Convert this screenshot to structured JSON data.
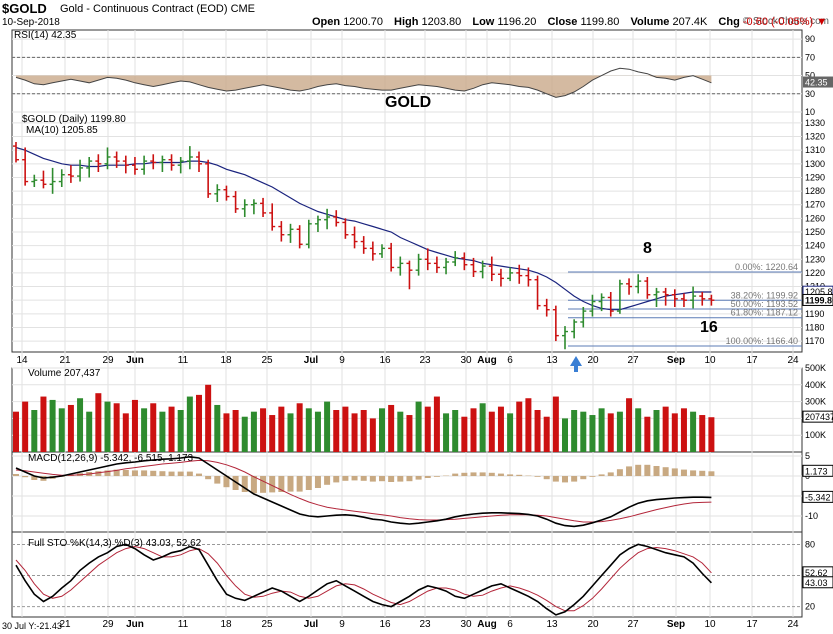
{
  "header": {
    "symbol": "$GOLD",
    "description": "Gold - Continuous Contract (EOD)",
    "exchange": "CME",
    "date": "10-Sep-2018",
    "watermark": "© StockCharts.com",
    "open_label": "Open",
    "open": "1200.70",
    "high_label": "High",
    "high": "1203.80",
    "low_label": "Low",
    "low": "1196.20",
    "close_label": "Close",
    "close": "1199.80",
    "volume_label": "Volume",
    "volume": "207.4K",
    "chg_label": "Chg",
    "chg": "-0.60 (-0.05%)"
  },
  "colors": {
    "up": "#2e8b2e",
    "down": "#cc1111",
    "ma": "#1a237e",
    "macd_hist": "#c8a982",
    "fib": "#5b7bb5",
    "annot": "#4a7bbf",
    "title": "#9b1fd1",
    "arrow": "#3a7fd4"
  },
  "chart_data": [
    {
      "type": "line",
      "title": "RSI(14) 42.35",
      "ylim": [
        10,
        100
      ],
      "yticks": [
        "90",
        "70",
        "50",
        "30",
        "10"
      ],
      "last_label": "42.35",
      "overlay_text": "GOLD",
      "values": [
        48,
        45,
        41,
        40,
        42,
        44,
        46,
        44,
        42,
        45,
        48,
        47,
        45,
        42,
        40,
        38,
        40,
        42,
        44,
        43,
        40,
        37,
        35,
        33,
        34,
        36,
        38,
        40,
        38,
        36,
        34,
        33,
        35,
        38,
        40,
        41,
        39,
        38,
        36,
        35,
        34,
        34,
        36,
        38,
        40,
        39,
        38,
        36,
        34,
        33,
        36,
        40,
        42,
        41,
        40,
        38,
        37,
        34,
        30,
        26,
        28,
        32,
        38,
        45,
        50,
        55,
        58,
        57,
        54,
        52,
        48,
        47,
        45,
        48,
        50,
        46,
        42
      ]
    },
    {
      "type": "bar",
      "title": "$GOLD (Daily) 1199.80",
      "ma_label": "MA(10) 1205.85",
      "ylim": [
        1162,
        1338
      ],
      "yticks": [
        "1330",
        "1320",
        "1310",
        "1300",
        "1290",
        "1280",
        "1270",
        "1260",
        "1250",
        "1240",
        "1230",
        "1220",
        "1210",
        "1200",
        "1190",
        "1180",
        "1170"
      ],
      "price_flags": [
        "1205.85",
        "1199.80"
      ],
      "x_labels": [
        "14",
        "21",
        "29",
        "Jun",
        "11",
        "18",
        "25",
        "Jul",
        "9",
        "16",
        "23",
        "30",
        "Aug",
        "6",
        "13",
        "20",
        "27",
        "Sep",
        "10",
        "17",
        "24"
      ],
      "ohlc": [
        [
          1313,
          1316,
          1301,
          1303
        ],
        [
          1303,
          1312,
          1284,
          1287
        ],
        [
          1287,
          1292,
          1283,
          1288
        ],
        [
          1288,
          1295,
          1282,
          1285
        ],
        [
          1285,
          1297,
          1278,
          1287
        ],
        [
          1287,
          1296,
          1283,
          1292
        ],
        [
          1292,
          1299,
          1286,
          1291
        ],
        [
          1291,
          1303,
          1287,
          1297
        ],
        [
          1297,
          1305,
          1290,
          1302
        ],
        [
          1302,
          1307,
          1294,
          1300
        ],
        [
          1300,
          1312,
          1296,
          1305
        ],
        [
          1305,
          1309,
          1297,
          1302
        ],
        [
          1302,
          1306,
          1293,
          1299
        ],
        [
          1299,
          1305,
          1292,
          1296
        ],
        [
          1296,
          1306,
          1292,
          1302
        ],
        [
          1302,
          1307,
          1296,
          1301
        ],
        [
          1301,
          1306,
          1294,
          1303
        ],
        [
          1303,
          1307,
          1295,
          1299
        ],
        [
          1299,
          1305,
          1293,
          1302
        ],
        [
          1302,
          1313,
          1296,
          1305
        ],
        [
          1305,
          1309,
          1294,
          1300
        ],
        [
          1300,
          1303,
          1275,
          1278
        ],
        [
          1278,
          1285,
          1272,
          1281
        ],
        [
          1281,
          1284,
          1273,
          1276
        ],
        [
          1276,
          1280,
          1264,
          1267
        ],
        [
          1267,
          1274,
          1261,
          1270
        ],
        [
          1270,
          1274,
          1263,
          1271
        ],
        [
          1271,
          1275,
          1261,
          1264
        ],
        [
          1264,
          1271,
          1251,
          1254
        ],
        [
          1254,
          1258,
          1243,
          1248
        ],
        [
          1248,
          1256,
          1242,
          1252
        ],
        [
          1252,
          1255,
          1238,
          1241
        ],
        [
          1241,
          1259,
          1238,
          1256
        ],
        [
          1256,
          1262,
          1250,
          1259
        ],
        [
          1259,
          1267,
          1252,
          1261
        ],
        [
          1261,
          1266,
          1254,
          1257
        ],
        [
          1257,
          1260,
          1245,
          1248
        ],
        [
          1248,
          1254,
          1238,
          1243
        ],
        [
          1243,
          1247,
          1234,
          1238
        ],
        [
          1238,
          1243,
          1229,
          1234
        ],
        [
          1234,
          1241,
          1231,
          1238
        ],
        [
          1238,
          1242,
          1221,
          1224
        ],
        [
          1224,
          1232,
          1218,
          1227
        ],
        [
          1227,
          1229,
          1208,
          1222
        ],
        [
          1222,
          1234,
          1218,
          1230
        ],
        [
          1230,
          1238,
          1222,
          1227
        ],
        [
          1227,
          1232,
          1220,
          1224
        ],
        [
          1224,
          1231,
          1219,
          1228
        ],
        [
          1228,
          1236,
          1225,
          1231
        ],
        [
          1231,
          1235,
          1222,
          1226
        ],
        [
          1226,
          1231,
          1217,
          1221
        ],
        [
          1221,
          1229,
          1216,
          1225
        ],
        [
          1225,
          1232,
          1214,
          1219
        ],
        [
          1219,
          1223,
          1210,
          1216
        ],
        [
          1216,
          1224,
          1214,
          1220
        ],
        [
          1220,
          1226,
          1212,
          1218
        ],
        [
          1218,
          1224,
          1210,
          1215
        ],
        [
          1215,
          1218,
          1193,
          1196
        ],
        [
          1196,
          1201,
          1188,
          1193
        ],
        [
          1193,
          1196,
          1170,
          1174
        ],
        [
          1174,
          1181,
          1164,
          1177
        ],
        [
          1177,
          1186,
          1172,
          1184
        ],
        [
          1184,
          1195,
          1180,
          1192
        ],
        [
          1192,
          1204,
          1188,
          1199
        ],
        [
          1199,
          1205,
          1192,
          1202
        ],
        [
          1202,
          1206,
          1188,
          1192
        ],
        [
          1192,
          1215,
          1190,
          1212
        ],
        [
          1212,
          1216,
          1204,
          1210
        ],
        [
          1210,
          1219,
          1205,
          1214
        ],
        [
          1214,
          1217,
          1201,
          1204
        ],
        [
          1204,
          1209,
          1195,
          1206
        ],
        [
          1206,
          1209,
          1196,
          1204
        ],
        [
          1204,
          1208,
          1195,
          1201
        ],
        [
          1201,
          1205,
          1195,
          1200
        ],
        [
          1200,
          1210,
          1194,
          1203
        ],
        [
          1203,
          1206,
          1196,
          1201
        ],
        [
          1201,
          1204,
          1196,
          1200
        ]
      ],
      "ma10": [
        1312,
        1310,
        1307,
        1304,
        1302,
        1300,
        1299,
        1299,
        1298,
        1298,
        1299,
        1299,
        1299,
        1300,
        1300,
        1301,
        1301,
        1301,
        1301,
        1302,
        1302,
        1301,
        1299,
        1296,
        1294,
        1292,
        1289,
        1286,
        1283,
        1279,
        1275,
        1271,
        1268,
        1265,
        1263,
        1261,
        1259,
        1258,
        1256,
        1254,
        1252,
        1250,
        1246,
        1243,
        1240,
        1237,
        1235,
        1233,
        1231,
        1230,
        1229,
        1227,
        1226,
        1225,
        1224,
        1223,
        1222,
        1220,
        1217,
        1213,
        1208,
        1203,
        1199,
        1196,
        1194,
        1193,
        1193,
        1195,
        1197,
        1199,
        1201,
        1203,
        1204,
        1205,
        1206,
        1206,
        1206
      ],
      "fib_levels": [
        {
          "label": "0.00%: 1220.64",
          "value": 1220.64
        },
        {
          "label": "38.20%: 1199.92",
          "value": 1199.92
        },
        {
          "label": "50.00%: 1193.52",
          "value": 1193.52
        },
        {
          "label": "61.80%: 1187.12",
          "value": 1187.12
        },
        {
          "label": "100.00%: 1166.40",
          "value": 1166.4
        }
      ],
      "annotations": [
        "8",
        "16"
      ]
    },
    {
      "type": "bar",
      "title": "Volume 207,437",
      "ylim": [
        0,
        500
      ],
      "yticks": [
        "500K",
        "400K",
        "300K",
        "200K",
        "100K"
      ],
      "last_label": "207437",
      "values_k": [
        240,
        300,
        250,
        330,
        310,
        260,
        280,
        320,
        240,
        350,
        300,
        290,
        230,
        310,
        260,
        290,
        240,
        270,
        250,
        330,
        340,
        400,
        280,
        230,
        250,
        210,
        240,
        260,
        220,
        270,
        230,
        290,
        260,
        240,
        300,
        250,
        270,
        230,
        250,
        200,
        260,
        280,
        240,
        220,
        300,
        270,
        330,
        230,
        250,
        210,
        260,
        290,
        240,
        270,
        230,
        300,
        320,
        250,
        210,
        330,
        200,
        250,
        240,
        220,
        260,
        230,
        240,
        320,
        260,
        210,
        250,
        270,
        230,
        260,
        240,
        220,
        207
      ]
    },
    {
      "type": "line",
      "title": "MACD(12,26,9) -5.342, -6.515, 1.173",
      "ylim": [
        -14,
        6
      ],
      "yticks": [
        "5",
        "0",
        "-5",
        "-10"
      ],
      "last_labels": [
        "1.173",
        "-5.342"
      ],
      "macd": [
        2,
        1,
        0,
        -0.5,
        -0.3,
        0,
        0.5,
        1,
        1.5,
        2,
        2.5,
        3,
        3.3,
        3.5,
        3.8,
        4,
        4.2,
        4.3,
        4.5,
        4.8,
        4.5,
        3,
        1.5,
        0,
        -1.5,
        -3,
        -4.5,
        -5.5,
        -6.5,
        -7.5,
        -8.5,
        -9.5,
        -10,
        -10.2,
        -10,
        -9.8,
        -9.7,
        -9.9,
        -10.3,
        -10.8,
        -11,
        -11.5,
        -11.8,
        -12,
        -11.8,
        -11.5,
        -11.2,
        -10.8,
        -10.2,
        -9.8,
        -9.5,
        -9.3,
        -9.2,
        -9.2,
        -9.3,
        -9.4,
        -9.6,
        -10,
        -10.8,
        -11.8,
        -12.4,
        -12.6,
        -12.3,
        -11.7,
        -11,
        -10.2,
        -9,
        -7.8,
        -6.8,
        -6.2,
        -5.9,
        -5.7,
        -5.5,
        -5.4,
        -5.3,
        -5.3,
        -5.342
      ],
      "signal": [
        1.5,
        1.3,
        1,
        0.7,
        0.4,
        0.2,
        0.2,
        0.3,
        0.5,
        0.8,
        1.1,
        1.4,
        1.8,
        2.1,
        2.4,
        2.7,
        3,
        3.2,
        3.4,
        3.7,
        3.9,
        3.8,
        3.4,
        2.8,
        2,
        1,
        -0.2,
        -1.3,
        -2.4,
        -3.5,
        -4.6,
        -5.6,
        -6.5,
        -7.2,
        -7.8,
        -8.2,
        -8.5,
        -8.8,
        -9.1,
        -9.4,
        -9.7,
        -10,
        -10.4,
        -10.7,
        -10.9,
        -11,
        -11,
        -10.9,
        -10.8,
        -10.6,
        -10.4,
        -10.2,
        -10,
        -9.8,
        -9.7,
        -9.7,
        -9.7,
        -9.8,
        -10,
        -10.4,
        -10.8,
        -11.2,
        -11.5,
        -11.5,
        -11.4,
        -11.1,
        -10.7,
        -10.2,
        -9.6,
        -9,
        -8.4,
        -7.9,
        -7.4,
        -7,
        -6.7,
        -6.6,
        -6.515
      ]
    },
    {
      "type": "line",
      "title": "Full STO %K(14,3) %D(3) 43.03, 52.62",
      "ylim": [
        10,
        92
      ],
      "yticks": [
        "80",
        "50",
        "20"
      ],
      "last_labels": [
        "52.62",
        "43.03"
      ],
      "k": [
        60,
        45,
        32,
        25,
        30,
        38,
        45,
        55,
        62,
        68,
        72,
        78,
        80,
        76,
        70,
        65,
        68,
        72,
        74,
        78,
        75,
        60,
        45,
        32,
        28,
        26,
        30,
        34,
        38,
        35,
        30,
        25,
        30,
        36,
        42,
        45,
        40,
        35,
        30,
        25,
        22,
        20,
        25,
        30,
        36,
        40,
        38,
        35,
        30,
        28,
        32,
        36,
        40,
        42,
        38,
        34,
        30,
        25,
        18,
        12,
        15,
        22,
        30,
        40,
        50,
        60,
        70,
        76,
        80,
        78,
        75,
        72,
        70,
        68,
        62,
        52,
        43.03
      ],
      "d": [
        65,
        55,
        42,
        32,
        28,
        30,
        36,
        44,
        52,
        60,
        66,
        72,
        76,
        78,
        76,
        72,
        68,
        68,
        70,
        74,
        76,
        71,
        62,
        50,
        40,
        32,
        29,
        30,
        33,
        35,
        34,
        30,
        28,
        30,
        35,
        40,
        42,
        41,
        37,
        32,
        28,
        24,
        22,
        25,
        30,
        35,
        38,
        38,
        36,
        32,
        30,
        31,
        35,
        38,
        40,
        38,
        35,
        31,
        26,
        20,
        16,
        16,
        21,
        28,
        37,
        47,
        57,
        65,
        72,
        76,
        77,
        76,
        74,
        71,
        68,
        62,
        52.62
      ]
    }
  ],
  "footer": {
    "crosshair_readout": "30 Jul Y:-21.43"
  }
}
